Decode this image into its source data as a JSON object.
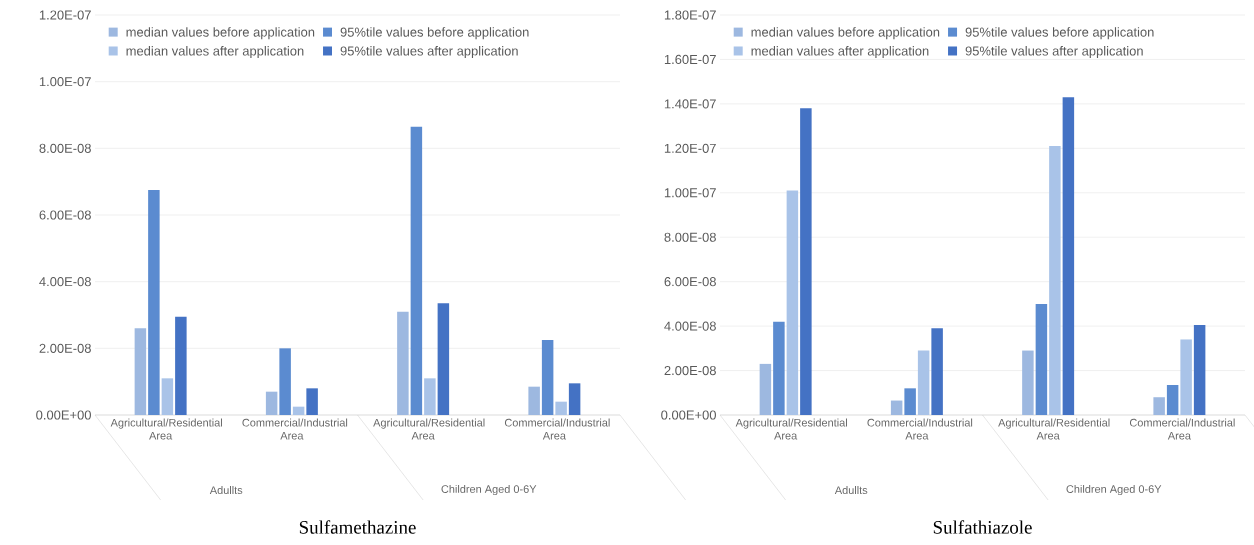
{
  "chart_data": [
    {
      "type": "bar",
      "title": "Sulfamethazine",
      "categories": [
        "Agricultural/Residential Area",
        "Commercial/Industrial Area",
        "Agricultural/Residential Area",
        "Commercial/Industrial Area"
      ],
      "series": [
        {
          "name": "median values before application",
          "color": "#9db8e0",
          "values": [
            2.6e-08,
            7e-09,
            3.1e-08,
            8.5e-09
          ]
        },
        {
          "name": "95%tile values before application",
          "color": "#5b8bd0",
          "values": [
            6.75e-08,
            2e-08,
            8.65e-08,
            2.25e-08
          ]
        },
        {
          "name": "median values after application",
          "color": "#a9c3e8",
          "values": [
            1.1e-08,
            2.5e-09,
            1.1e-08,
            4e-09
          ]
        },
        {
          "name": "95%tile values after application",
          "color": "#4472c4",
          "values": [
            2.95e-08,
            8e-09,
            3.35e-08,
            9.5e-09
          ]
        }
      ],
      "annotations": [
        "Adullts",
        "Children Aged 0-6Y"
      ],
      "ylim": [
        0,
        1.2e-07
      ],
      "yticks": [
        {
          "value": 0,
          "label": "0.00E+00"
        },
        {
          "value": 2e-08,
          "label": "2.00E-08"
        },
        {
          "value": 4e-08,
          "label": "4.00E-08"
        },
        {
          "value": 6e-08,
          "label": "6.00E-08"
        },
        {
          "value": 8e-08,
          "label": "8.00E-08"
        },
        {
          "value": 1e-07,
          "label": "1.00E-07"
        },
        {
          "value": 1.2e-07,
          "label": "1.20E-07"
        }
      ],
      "grid": "y",
      "legend": "top"
    },
    {
      "type": "bar",
      "title": "Sulfathiazole",
      "categories": [
        "Agricultural/Residential Area",
        "Commercial/Industrial Area",
        "Agricultural/Residential Area",
        "Commercial/Industrial Area"
      ],
      "series": [
        {
          "name": "median values before application",
          "color": "#9db8e0",
          "values": [
            2.3e-08,
            6.5e-09,
            2.9e-08,
            8e-09
          ]
        },
        {
          "name": "95%tile values before application",
          "color": "#5b8bd0",
          "values": [
            4.2e-08,
            1.2e-08,
            5e-08,
            1.35e-08
          ]
        },
        {
          "name": "median values after application",
          "color": "#a9c3e8",
          "values": [
            1.01e-07,
            2.9e-08,
            1.21e-07,
            3.4e-08
          ]
        },
        {
          "name": "95%tile values after application",
          "color": "#4472c4",
          "values": [
            1.38e-07,
            3.9e-08,
            1.43e-07,
            4.05e-08
          ]
        }
      ],
      "annotations": [
        "Adullts",
        "Children Aged 0-6Y"
      ],
      "ylim": [
        0,
        1.8e-07
      ],
      "yticks": [
        {
          "value": 0,
          "label": "0.00E+00"
        },
        {
          "value": 2e-08,
          "label": "2.00E-08"
        },
        {
          "value": 4e-08,
          "label": "4.00E-08"
        },
        {
          "value": 6e-08,
          "label": "6.00E-08"
        },
        {
          "value": 8e-08,
          "label": "8.00E-08"
        },
        {
          "value": 1e-07,
          "label": "1.00E-07"
        },
        {
          "value": 1.2e-07,
          "label": "1.20E-07"
        },
        {
          "value": 1.4e-07,
          "label": "1.40E-07"
        },
        {
          "value": 1.6e-07,
          "label": "1.60E-07"
        },
        {
          "value": 1.8e-07,
          "label": "1.80E-07"
        }
      ],
      "grid": "y",
      "legend": "top"
    }
  ]
}
